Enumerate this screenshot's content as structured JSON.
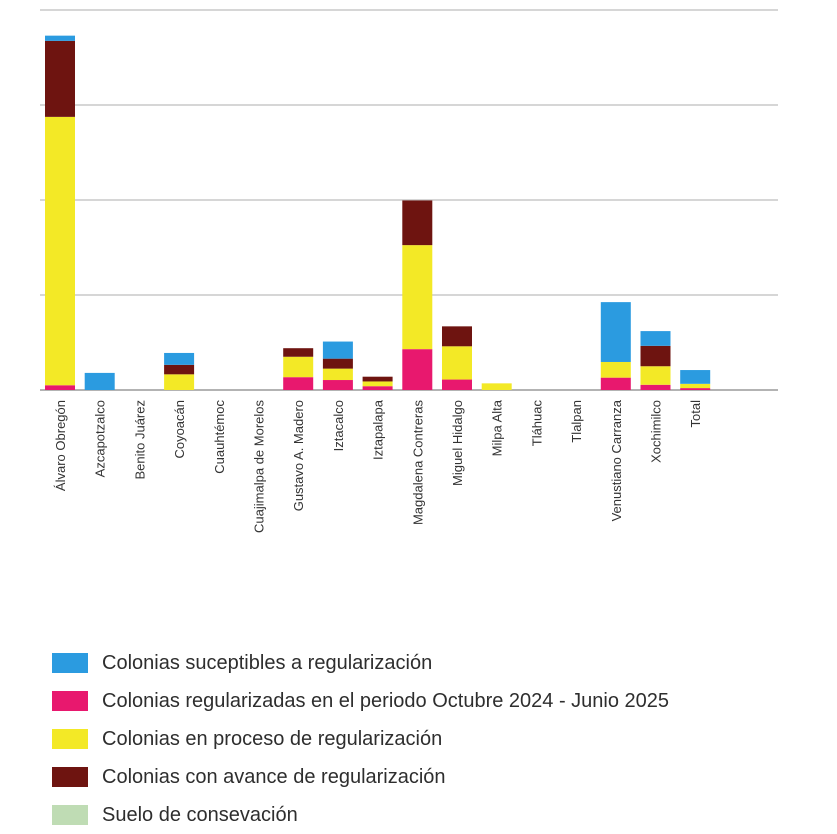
{
  "chart_data": {
    "type": "bar",
    "stacked": true,
    "categories": [
      "Álvaro Obregón",
      "Azcapotzalco",
      "Benito Juárez",
      "Coyoacán",
      "Cuauhtémoc",
      "Cuajimalpa de Morelos",
      "Gustavo A. Madero",
      "Iztacalco",
      "Iztapalapa",
      "Magdalena Contreras",
      "Miguel Hidalgo",
      "Milpa Alta",
      "Tláhuac",
      "Tlalpan",
      "Venustiano Carranza",
      "Xochimilco",
      "Total"
    ],
    "series": [
      {
        "name": "Colonias regularizadas en el periodo Octubre 2024 - Junio 2025",
        "color": "#e8186e",
        "values": [
          1.0,
          0,
          0,
          0,
          0,
          0,
          2.7,
          2.1,
          0.8,
          8.6,
          2.2,
          0,
          0,
          0,
          2.6,
          1.1,
          0.4
        ]
      },
      {
        "name": "Colonias en proceso de regularización",
        "color": "#f3e926",
        "values": [
          56.5,
          0,
          0,
          3.3,
          0,
          0,
          4.3,
          2.4,
          1.0,
          21.9,
          7.0,
          1.4,
          0,
          0,
          3.3,
          3.9,
          0.9
        ]
      },
      {
        "name": "Colonias con avance de regularización",
        "color": "#6e1410",
        "values": [
          16.0,
          0,
          0,
          2.0,
          0,
          0,
          1.8,
          2.1,
          1.0,
          9.4,
          4.2,
          0,
          0,
          0,
          0,
          4.3,
          0
        ]
      },
      {
        "name": "Colonias suceptibles a regularización",
        "color": "#2b9be0",
        "values": [
          1.1,
          3.6,
          0,
          2.5,
          0,
          0,
          0,
          3.6,
          0,
          0,
          0,
          0,
          0,
          0,
          12.6,
          3.1,
          2.9
        ]
      },
      {
        "name": "Suelo de consevación",
        "color": "#bfdcb4",
        "values": [
          0,
          0,
          0,
          0,
          0,
          0,
          0,
          0,
          0,
          0,
          0,
          0,
          0,
          0,
          0,
          0,
          0
        ]
      }
    ],
    "ylim": [
      0,
      80
    ],
    "gridlines": [
      0,
      20,
      40,
      60,
      80
    ],
    "grid": true,
    "legend_position": "bottom"
  },
  "legend": [
    {
      "label": "Colonias suceptibles a regularización",
      "color": "#2b9be0"
    },
    {
      "label": "Colonias regularizadas en el periodo Octubre 2024 - Junio 2025",
      "color": "#e8186e"
    },
    {
      "label": "Colonias en proceso de regularización",
      "color": "#f3e926"
    },
    {
      "label": "Colonias con avance de regularización",
      "color": "#6e1410"
    },
    {
      "label": "Suelo de consevación",
      "color": "#bfdcb4"
    }
  ]
}
